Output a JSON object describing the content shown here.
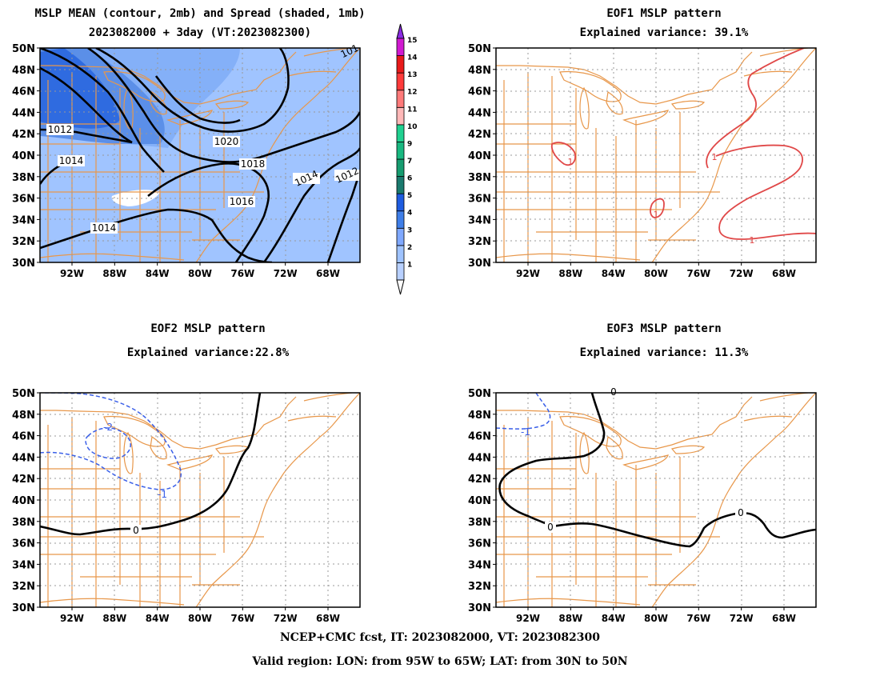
{
  "panels": [
    {
      "id": "mean",
      "title1": "MSLP MEAN (contour, 2mb) and Spread (shaded, 1mb)",
      "title2": "2023082000 + 3day (VT:2023082300)"
    },
    {
      "id": "eof1",
      "title1": "EOF1 MSLP pattern",
      "title2": "Explained variance: 39.1%"
    },
    {
      "id": "eof2",
      "title1": "EOF2 MSLP pattern",
      "title2": "Explained variance:22.8%"
    },
    {
      "id": "eof3",
      "title1": "EOF3 MSLP pattern",
      "title2": "Explained variance: 11.3%"
    }
  ],
  "axes": {
    "lat_labels": [
      "30N",
      "32N",
      "34N",
      "36N",
      "38N",
      "40N",
      "42N",
      "44N",
      "46N",
      "48N",
      "50N"
    ],
    "lon_labels": [
      "92W",
      "88W",
      "84W",
      "80W",
      "76W",
      "72W",
      "68W"
    ],
    "lon_range": [
      -95,
      -65
    ],
    "lat_range": [
      30,
      50
    ]
  },
  "colorbar": {
    "levels": [
      "1",
      "2",
      "3",
      "4",
      "5",
      "6",
      "7",
      "9",
      "10",
      "11",
      "12",
      "13",
      "14",
      "15"
    ],
    "colors": [
      "#b8d0ff",
      "#9fc3ff",
      "#7fa8ff",
      "#3f7ee8",
      "#1e5ce0",
      "#1a7a6e",
      "#169c70",
      "#18b880",
      "#20d090",
      "#ffb8b8",
      "#ff7a7a",
      "#ff3b3b",
      "#e81a1a",
      "#d01ad0"
    ],
    "top_color": "#8a2be2"
  },
  "contour_labels": {
    "mean": [
      "1012",
      "1014",
      "1020",
      "1018",
      "1016",
      "1014",
      "1012",
      "1014",
      "101"
    ],
    "eof1": [
      "1",
      "1",
      "1",
      "1"
    ],
    "eof2": [
      "-2",
      "-1",
      "0"
    ],
    "eof3": [
      "0",
      "-1",
      "0",
      "0"
    ]
  },
  "footer": {
    "line1": "NCEP+CMC fcst, IT: 2023082000, VT: 2023082300",
    "line2": "Valid region: LON: from 95W to 65W; LAT: from 30N to 50N"
  }
}
